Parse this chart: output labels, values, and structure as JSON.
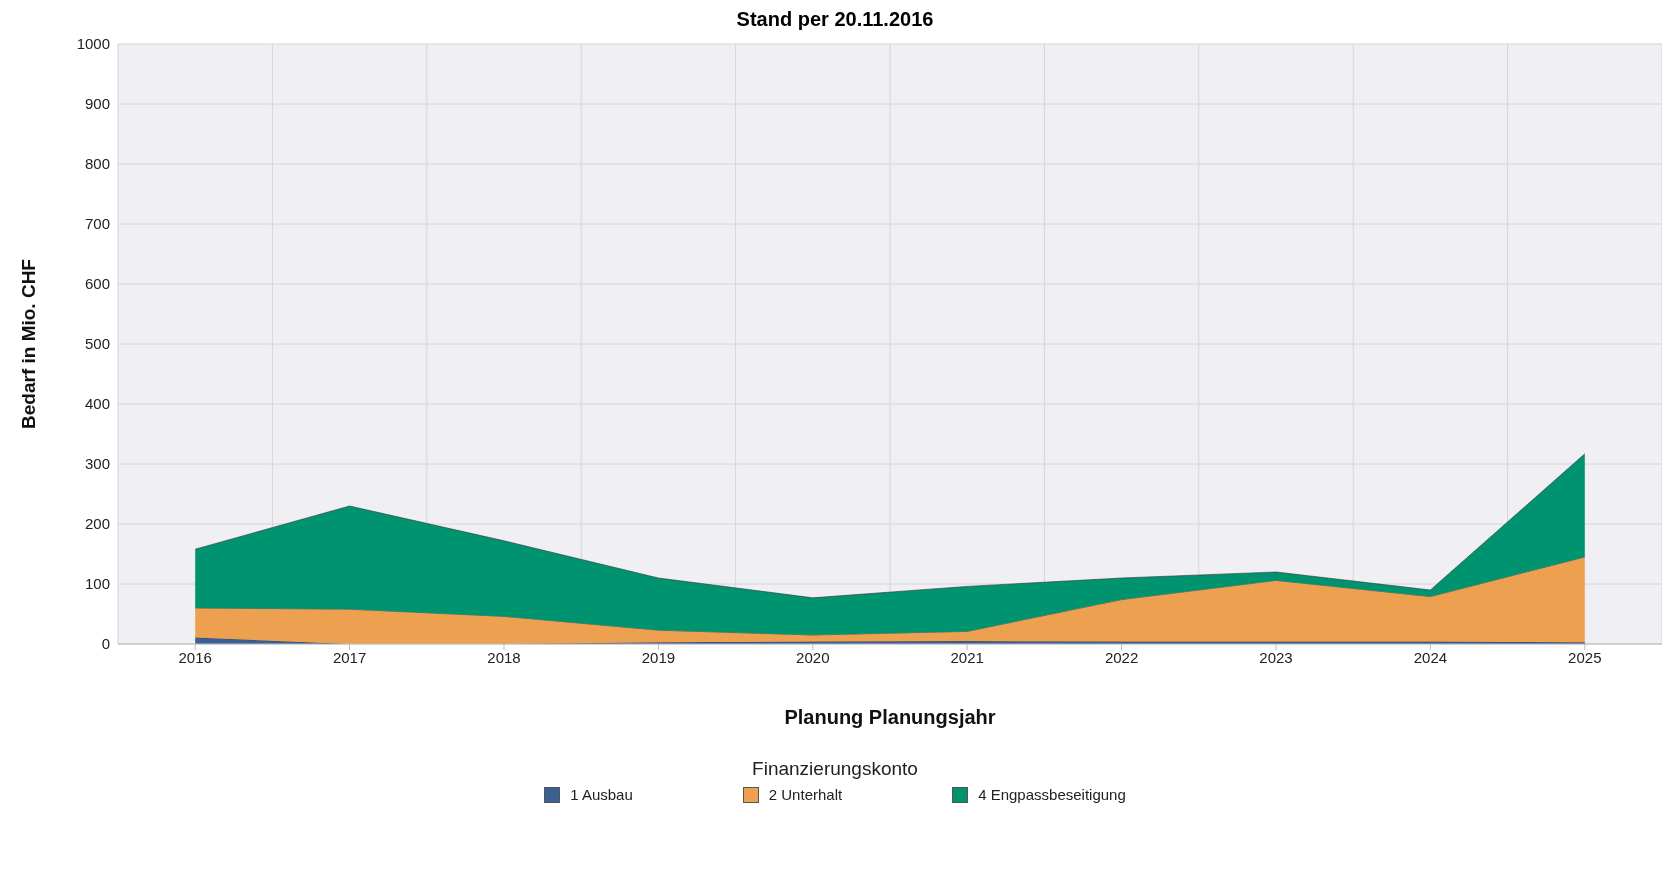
{
  "chart_data": {
    "type": "area",
    "stacked": true,
    "title": "Stand per 20.11.2016",
    "xlabel": "Planung Planungsjahr",
    "ylabel": "Bedarf in Mio. CHF",
    "legend_title": "Finanzierungskonto",
    "legend": "bottom",
    "grid": true,
    "categories": [
      "2016",
      "2017",
      "2018",
      "2019",
      "2020",
      "2021",
      "2022",
      "2023",
      "2024",
      "2025"
    ],
    "series": [
      {
        "name": "1 Ausbau",
        "color": "#3c5f94",
        "values": [
          11,
          0,
          0,
          3,
          4,
          5,
          4,
          4,
          4,
          3
        ]
      },
      {
        "name": "2 Unterhalt",
        "color": "#eda04f",
        "values": [
          49,
          58,
          46,
          20,
          11,
          16,
          70,
          102,
          75,
          142
        ]
      },
      {
        "name": "4 Engpassbeseitigung",
        "color": "#009370",
        "values": [
          98,
          172,
          126,
          87,
          62,
          75,
          36,
          14,
          11,
          172
        ]
      }
    ],
    "ylim": [
      0,
      1000
    ],
    "yticks": [
      0,
      100,
      200,
      300,
      400,
      500,
      600,
      700,
      800,
      900,
      1000
    ]
  }
}
